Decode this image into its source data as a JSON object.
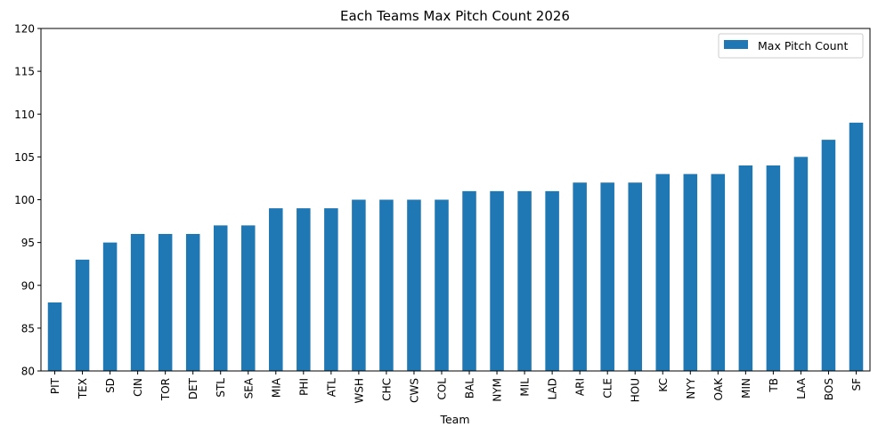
{
  "chart_data": {
    "type": "bar",
    "title": "Each Teams Max Pitch Count 2026",
    "xlabel": "Team",
    "ylabel": "",
    "ylim": [
      80,
      120
    ],
    "yticks": [
      80,
      85,
      90,
      95,
      100,
      105,
      110,
      115,
      120
    ],
    "grid": false,
    "legend_position": "top-right",
    "categories": [
      "PIT",
      "TEX",
      "SD",
      "CIN",
      "TOR",
      "DET",
      "STL",
      "SEA",
      "MIA",
      "PHI",
      "ATL",
      "WSH",
      "CHC",
      "CWS",
      "COL",
      "BAL",
      "NYM",
      "MIL",
      "LAD",
      "ARI",
      "CLE",
      "HOU",
      "KC",
      "NYY",
      "OAK",
      "MIN",
      "TB",
      "LAA",
      "BOS",
      "SF"
    ],
    "series": [
      {
        "name": "Max Pitch Count",
        "color": "#1f77b4",
        "values": [
          88,
          93,
          95,
          96,
          96,
          96,
          97,
          97,
          99,
          99,
          99,
          100,
          100,
          100,
          100,
          101,
          101,
          101,
          101,
          102,
          102,
          102,
          103,
          103,
          103,
          104,
          104,
          105,
          107,
          109
        ]
      }
    ]
  }
}
